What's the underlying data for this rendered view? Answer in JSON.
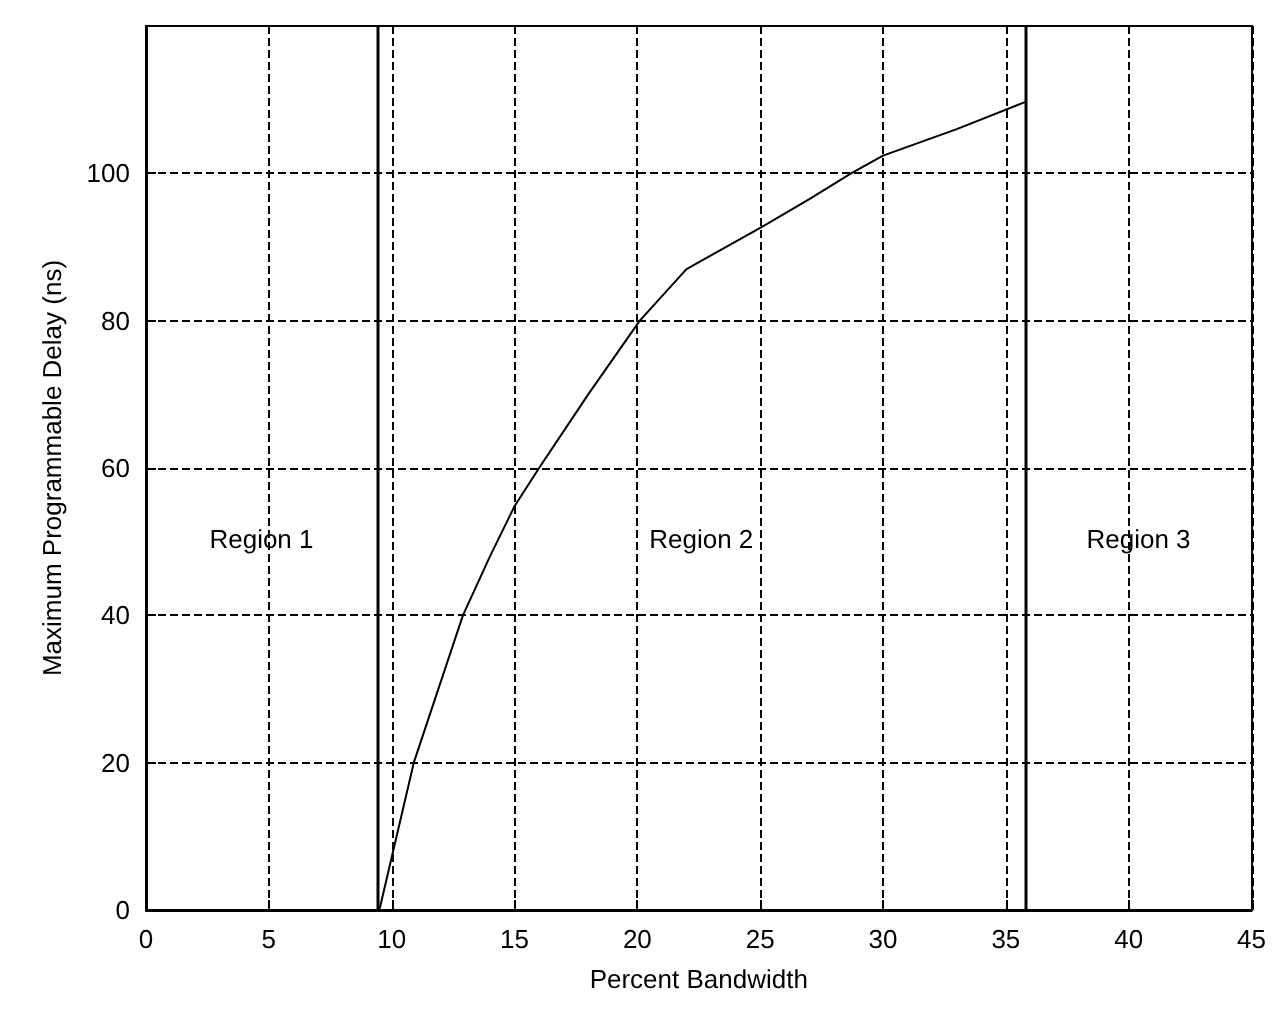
{
  "chart_data": {
    "type": "line",
    "xlabel": "Percent Bandwidth",
    "ylabel": "Maximum Programmable Delay (ns)",
    "x": [
      9.5,
      10.9,
      12.9,
      14,
      15,
      16,
      18,
      20.1,
      22,
      25,
      27,
      28.7,
      30,
      33,
      35.8
    ],
    "series": [
      {
        "color": "#000000",
        "values": [
          0,
          20,
          40,
          48,
          54.8,
          60,
          70,
          80,
          87,
          92.6,
          96.5,
          100,
          102.4,
          106,
          109.7
        ]
      }
    ],
    "xlim": [
      0,
      45
    ],
    "ylim": [
      0,
      120
    ],
    "xticks": [
      0,
      5,
      10,
      15,
      20,
      25,
      30,
      35,
      40,
      45
    ],
    "yticks": [
      0,
      20,
      40,
      60,
      80,
      100
    ],
    "grid": true,
    "marker": "none",
    "line_style": "solid",
    "ref_lines": [
      {
        "axis": "x",
        "value": 9.4,
        "color": "#000000"
      },
      {
        "axis": "x",
        "value": 35.8,
        "color": "#000000"
      }
    ],
    "annotations": [
      "Region 1",
      "Region 2",
      "Region 3"
    ]
  }
}
